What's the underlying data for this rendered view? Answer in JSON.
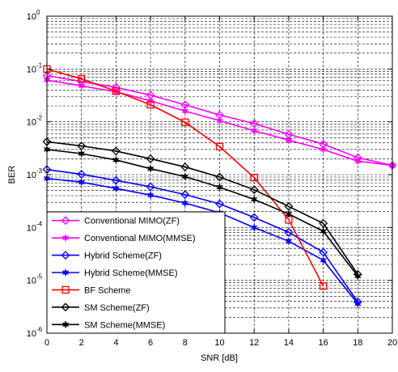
{
  "chart_data": {
    "type": "line",
    "xlabel": "SNR [dB]",
    "ylabel": "BER",
    "xlim": [
      0,
      20
    ],
    "ylim": [
      1e-06,
      1
    ],
    "yscale": "log",
    "x_ticks": [
      0,
      2,
      4,
      6,
      8,
      10,
      12,
      14,
      16,
      18,
      20
    ],
    "y_tick_base": "10",
    "y_tick_exponents": [
      "0",
      "-1",
      "-2",
      "-3",
      "-4",
      "-5",
      "-6"
    ],
    "grid": true,
    "legend_position": "lower-left",
    "series": [
      {
        "name": "Conventional MIMO(ZF)",
        "color": "#ff00ff",
        "marker": "diamond",
        "x": [
          0,
          2,
          4,
          6,
          8,
          10,
          12,
          14,
          16,
          18,
          20
        ],
        "y": [
          0.075,
          0.058,
          0.045,
          0.032,
          0.021,
          0.0135,
          0.0093,
          0.0058,
          0.0038,
          0.0021,
          0.0015
        ]
      },
      {
        "name": "Conventional MIMO(MMSE)",
        "color": "#ff00ff",
        "marker": "star",
        "x": [
          0,
          2,
          4,
          6,
          8,
          10,
          12,
          14,
          16,
          18,
          20
        ],
        "y": [
          0.062,
          0.048,
          0.037,
          0.025,
          0.016,
          0.0105,
          0.0068,
          0.0045,
          0.003,
          0.0018,
          0.0015
        ]
      },
      {
        "name": "Hybrid Scheme(ZF)",
        "color": "#0000ff",
        "marker": "diamond",
        "x": [
          0,
          2,
          4,
          6,
          8,
          10,
          12,
          14,
          16,
          18
        ],
        "y": [
          0.00125,
          0.00102,
          0.00078,
          0.00059,
          0.00042,
          0.00028,
          0.000155,
          8.1e-05,
          3.4e-05,
          3.9e-06
        ]
      },
      {
        "name": "Hybrid Scheme(MMSE)",
        "color": "#0000ff",
        "marker": "star",
        "x": [
          0,
          2,
          4,
          6,
          8,
          10,
          12,
          14,
          16,
          18
        ],
        "y": [
          0.00085,
          0.00072,
          0.00055,
          0.00041,
          0.00029,
          0.00019,
          0.0001,
          5.5e-05,
          2.4e-05,
          3.6e-06
        ]
      },
      {
        "name": "BF Scheme",
        "color": "#ff0000",
        "marker": "square",
        "x": [
          0,
          2,
          4,
          6,
          8,
          10,
          12,
          14,
          16
        ],
        "y": [
          0.1,
          0.065,
          0.038,
          0.021,
          0.0098,
          0.0034,
          0.00088,
          0.00014,
          7.8e-06
        ]
      },
      {
        "name": "SM Scheme(ZF)",
        "color": "#000000",
        "marker": "diamond",
        "x": [
          0,
          2,
          4,
          6,
          8,
          10,
          12,
          14,
          16,
          18
        ],
        "y": [
          0.0042,
          0.0035,
          0.0028,
          0.002,
          0.0014,
          0.0009,
          0.00052,
          0.00025,
          0.00012,
          1.3e-05
        ]
      },
      {
        "name": "SM Scheme(MMSE)",
        "color": "#000000",
        "marker": "star",
        "x": [
          0,
          2,
          4,
          6,
          8,
          10,
          12,
          14,
          16,
          18
        ],
        "y": [
          0.003,
          0.0025,
          0.0019,
          0.0013,
          0.00092,
          0.00058,
          0.00034,
          0.00018,
          8.5e-05,
          1.2e-05
        ]
      }
    ]
  }
}
